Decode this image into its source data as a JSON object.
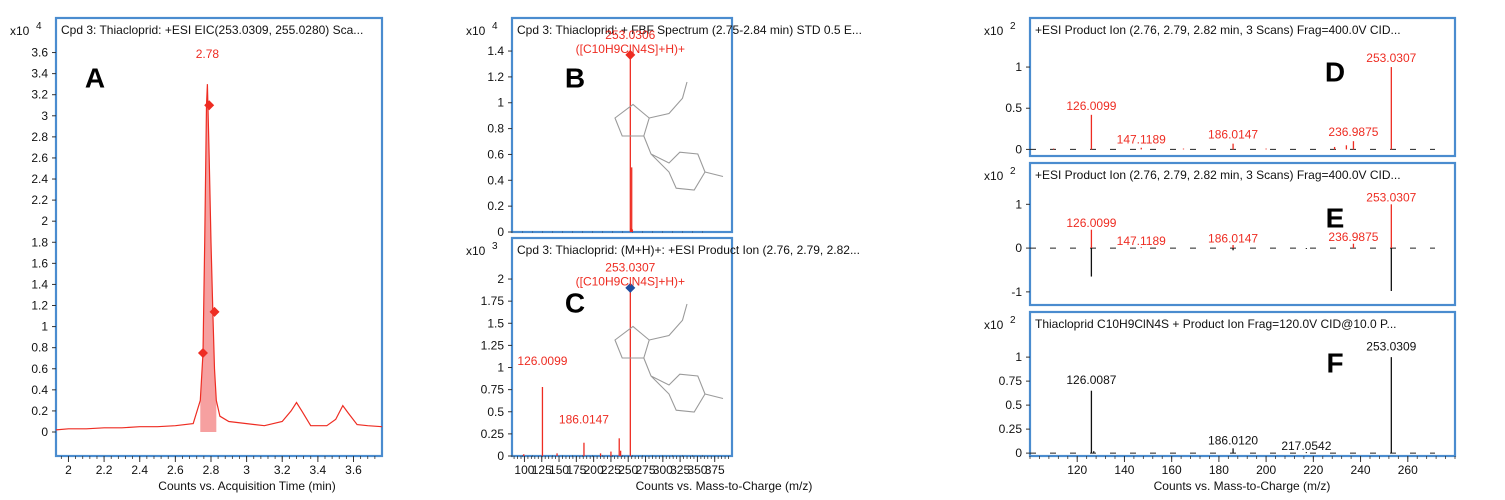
{
  "colors": {
    "frame": "#4a8ccf",
    "signal": "#ee2c22",
    "fill": "#f6a0a0",
    "black": "#111111",
    "axis": "#333333",
    "marker_blue": "#1f4e9e"
  },
  "chart_data": [
    {
      "id": "A",
      "type": "line",
      "panel_letter": "A",
      "title": "Cpd 3: Thiacloprid: +ESI EIC(253.0309, 255.0280) Sca...",
      "exponent_base": "x10",
      "exponent_power": "4",
      "xlabel": "Counts vs. Acquisition Time (min)",
      "xlim": [
        1.93,
        3.76
      ],
      "ylim": [
        0,
        3.7
      ],
      "xticks": [
        "2",
        "2.2",
        "2.4",
        "2.6",
        "2.8",
        "3",
        "3.2",
        "3.4",
        "3.6"
      ],
      "yticks": [
        "0",
        "0.2",
        "0.4",
        "0.6",
        "0.8",
        "1",
        "1.2",
        "1.4",
        "1.6",
        "1.8",
        "2",
        "2.2",
        "2.4",
        "2.6",
        "2.8",
        "3",
        "3.2",
        "3.4",
        "3.6"
      ],
      "series": [
        {
          "x": [
            1.93,
            2.0,
            2.1,
            2.2,
            2.3,
            2.4,
            2.5,
            2.6,
            2.7,
            2.74,
            2.755,
            2.765,
            2.775,
            2.78,
            2.79,
            2.8,
            2.81,
            2.82,
            2.83,
            2.85,
            2.9,
            3.0,
            3.1,
            3.2,
            3.25,
            3.28,
            3.31,
            3.36,
            3.45,
            3.5,
            3.54,
            3.57,
            3.62,
            3.68,
            3.76
          ],
          "y": [
            0.02,
            0.03,
            0.03,
            0.04,
            0.04,
            0.05,
            0.05,
            0.06,
            0.08,
            0.3,
            0.75,
            1.8,
            3.1,
            3.3,
            2.6,
            1.8,
            1.15,
            0.6,
            0.3,
            0.15,
            0.1,
            0.08,
            0.06,
            0.1,
            0.2,
            0.28,
            0.2,
            0.06,
            0.06,
            0.12,
            0.25,
            0.18,
            0.07,
            0.06,
            0.05
          ]
        }
      ],
      "fill_range": [
        2.74,
        2.84
      ],
      "markers": [
        {
          "x": 2.79,
          "y": 3.1
        },
        {
          "x": 2.82,
          "y": 1.14
        },
        {
          "x": 2.755,
          "y": 0.75
        }
      ],
      "annotations": [
        {
          "text": "2.78",
          "x": 2.78,
          "y": 3.55
        }
      ]
    },
    {
      "id": "B",
      "type": "bar",
      "panel_letter": "B",
      "title": "Cpd 3: Thiacloprid: + FBF Spectrum (2.75-2.84 min) STD 0.5 E...",
      "exponent_base": "x10",
      "exponent_power": "4",
      "xlabel": "",
      "xlim": [
        82,
        400
      ],
      "ylim": [
        0,
        1.47
      ],
      "xticks": [],
      "yticks": [
        "0",
        "0.2",
        "0.4",
        "0.6",
        "0.8",
        "1",
        "1.2",
        "1.4"
      ],
      "peaks": [
        {
          "x": 253.03,
          "y": 1.37
        },
        {
          "x": 254,
          "y": 0.03
        },
        {
          "x": 255.03,
          "y": 0.5
        },
        {
          "x": 256,
          "y": 0.02
        }
      ],
      "peak_color": "signal",
      "markers": [
        {
          "x": 253.03,
          "y": 1.37,
          "shape": "diamond",
          "color": "signal"
        }
      ],
      "annotations": [
        {
          "text": "253.0306",
          "x": 253.03,
          "y": 1.4,
          "line": 1
        },
        {
          "text": "([C10H9ClN4S]+H)+",
          "x": 253.03,
          "y": 1.4,
          "line": 2
        }
      ],
      "structure": true
    },
    {
      "id": "C",
      "type": "bar",
      "panel_letter": "C",
      "title": "Cpd 3: Thiacloprid: (M+H)+: +ESI Product Ion (2.76, 2.79, 2.82...",
      "exponent_base": "x10",
      "exponent_power": "3",
      "xlabel": "Counts vs. Mass-to-Charge (m/z)",
      "xlim": [
        82,
        400
      ],
      "ylim": [
        0,
        2.17
      ],
      "xticks": [
        "100",
        "125",
        "150",
        "175",
        "200",
        "225",
        "250",
        "275",
        "300",
        "325",
        "350",
        "375"
      ],
      "yticks": [
        "0",
        "0.25",
        "0.5",
        "0.75",
        "1",
        "1.25",
        "1.5",
        "1.75",
        "2"
      ],
      "peaks": [
        {
          "x": 99,
          "y": 0.02
        },
        {
          "x": 126.01,
          "y": 0.78
        },
        {
          "x": 147.12,
          "y": 0.03
        },
        {
          "x": 186.01,
          "y": 0.15
        },
        {
          "x": 210,
          "y": 0.03
        },
        {
          "x": 225,
          "y": 0.05
        },
        {
          "x": 236.99,
          "y": 0.2
        },
        {
          "x": 239,
          "y": 0.06
        },
        {
          "x": 253.03,
          "y": 1.9
        }
      ],
      "peak_color": "signal",
      "markers": [
        {
          "x": 253.03,
          "y": 1.9,
          "shape": "diamond",
          "color": "marker_blue"
        }
      ],
      "annotations": [
        {
          "text": "126.0099",
          "x": 126.01,
          "y": 1.03,
          "line": 1
        },
        {
          "text": "186.0147",
          "x": 186.01,
          "y": 0.37,
          "line": 1
        },
        {
          "text": "253.0307",
          "x": 253.03,
          "y": 1.95,
          "line": 1
        },
        {
          "text": "([C10H9ClN4S]+H)+",
          "x": 253.03,
          "y": 1.95,
          "line": 2
        }
      ],
      "structure": true
    },
    {
      "id": "D",
      "type": "bar",
      "panel_letter": "D",
      "title": "+ESI Product Ion (2.76, 2.79, 2.82 min, 3 Scans) Frag=400.0V CID...",
      "exponent_base": "x10",
      "exponent_power": "2",
      "xlabel": "",
      "xlim": [
        100,
        280
      ],
      "ylim": [
        -0.08,
        1.28
      ],
      "xticks": [],
      "yticks": [
        "0",
        "0.5",
        "1"
      ],
      "peaks": [
        {
          "x": 110,
          "y": 0.01
        },
        {
          "x": 126.01,
          "y": 0.42
        },
        {
          "x": 147.12,
          "y": 0.02
        },
        {
          "x": 165,
          "y": 0.01
        },
        {
          "x": 186.01,
          "y": 0.07
        },
        {
          "x": 200,
          "y": 0.01
        },
        {
          "x": 229,
          "y": 0.03
        },
        {
          "x": 234,
          "y": 0.05
        },
        {
          "x": 236.99,
          "y": 0.1
        },
        {
          "x": 253.03,
          "y": 1.0
        }
      ],
      "peak_color": "signal",
      "annotations": [
        {
          "text": "126.0099",
          "x": 126.01,
          "y": 0.48
        },
        {
          "text": "147.1189",
          "x": 147.12,
          "y": 0.07
        },
        {
          "text": "186.0147",
          "x": 186.01,
          "y": 0.13
        },
        {
          "text": "236.9875",
          "x": 236.99,
          "y": 0.16
        },
        {
          "text": "253.0307",
          "x": 253.03,
          "y": 1.06
        }
      ]
    },
    {
      "id": "E",
      "type": "bar",
      "panel_letter": "E",
      "title": "+ESI Product Ion (2.76, 2.79, 2.82 min, 3 Scans) Frag=400.0V CID...",
      "exponent_base": "x10",
      "exponent_power": "2",
      "xlabel": "",
      "xlim": [
        100,
        280
      ],
      "ylim": [
        -1.3,
        1.35
      ],
      "xticks": [],
      "yticks": [
        "-1",
        "0",
        "1"
      ],
      "peaks": [
        {
          "x": 126.01,
          "y": 0.42,
          "color": "signal"
        },
        {
          "x": 147.12,
          "y": 0.02,
          "color": "signal"
        },
        {
          "x": 186.01,
          "y": 0.07,
          "color": "signal"
        },
        {
          "x": 236.99,
          "y": 0.1,
          "color": "signal"
        },
        {
          "x": 253.03,
          "y": 1.0,
          "color": "signal"
        },
        {
          "x": 126.0,
          "y": -0.65,
          "color": "black"
        },
        {
          "x": 186.0,
          "y": -0.05,
          "color": "black"
        },
        {
          "x": 217.05,
          "y": -0.02,
          "color": "black"
        },
        {
          "x": 253.03,
          "y": -0.98,
          "color": "black"
        }
      ],
      "annotations": [
        {
          "text": "126.0099",
          "x": 126.01,
          "y": 0.48
        },
        {
          "text": "147.1189",
          "x": 147.12,
          "y": 0.07
        },
        {
          "text": "186.0147",
          "x": 186.01,
          "y": 0.13
        },
        {
          "text": "236.9875",
          "x": 236.99,
          "y": 0.16
        },
        {
          "text": "253.0307",
          "x": 253.03,
          "y": 1.06
        }
      ]
    },
    {
      "id": "F",
      "type": "bar",
      "panel_letter": "F",
      "title": "Thiacloprid C10H9ClN4S + Product Ion Frag=120.0V CID@10.0 P...",
      "exponent_base": "x10",
      "exponent_power": "2",
      "xlabel": "Counts vs. Mass-to-Charge (m/z)",
      "xlim": [
        100,
        280
      ],
      "ylim": [
        -0.03,
        1.22
      ],
      "xticks": [
        "120",
        "140",
        "160",
        "180",
        "200",
        "220",
        "240",
        "260"
      ],
      "yticks": [
        "0",
        "0.25",
        "0.5",
        "0.75",
        "1"
      ],
      "peaks": [
        {
          "x": 126.01,
          "y": 0.65
        },
        {
          "x": 127,
          "y": 0.02
        },
        {
          "x": 186.01,
          "y": 0.05
        },
        {
          "x": 217.05,
          "y": 0.01
        },
        {
          "x": 253.03,
          "y": 1.0
        }
      ],
      "peak_color": "black",
      "annotations": [
        {
          "text": "126.0087",
          "x": 126.01,
          "y": 0.72
        },
        {
          "text": "186.0120",
          "x": 186.01,
          "y": 0.09
        },
        {
          "text": "217.0542",
          "x": 217.05,
          "y": 0.03
        },
        {
          "text": "253.0309",
          "x": 253.03,
          "y": 1.07
        }
      ]
    }
  ]
}
